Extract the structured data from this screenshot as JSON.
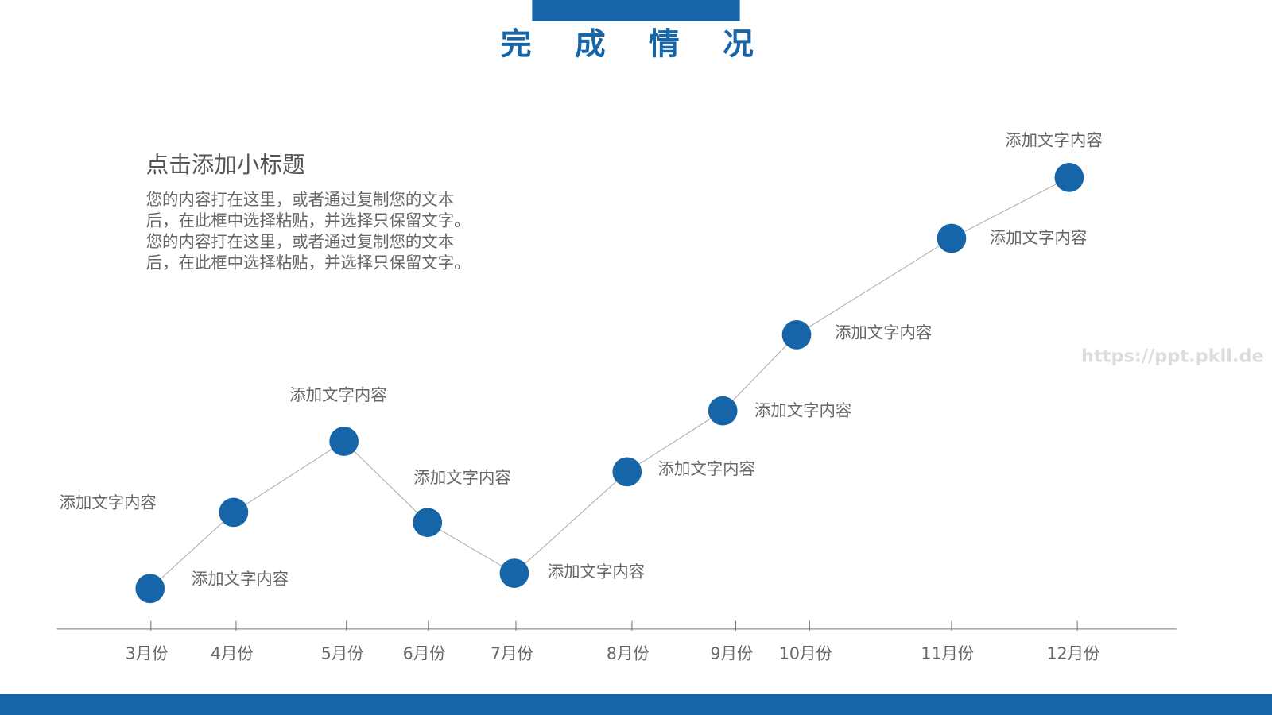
{
  "title": "完 成 情 况",
  "subtitle": "点击添加小标题",
  "body_lines": [
    "您的内容打在这里，或者通过复制您的文本",
    "后，在此框中选择粘贴，并选择只保留文字。",
    "您的内容打在这里，或者通过复制您的文本",
    "后，在此框中选择粘贴，并选择只保留文字。"
  ],
  "watermark": "https://ppt.pkll.de",
  "chart_data": {
    "type": "line",
    "categories": [
      "3月份",
      "4月份",
      "5月份",
      "6月份",
      "7月份",
      "8月份",
      "9月份",
      "10月份",
      "11月份",
      "12月份"
    ],
    "values": [
      8,
      23,
      37,
      21,
      11,
      31,
      43,
      58,
      77,
      89
    ],
    "point_labels": [
      "添加文字内容",
      "添加文字内容",
      "添加文字内容",
      "添加文字内容",
      "添加文字内容",
      "添加文字内容",
      "添加文字内容",
      "添加文字内容",
      "添加文字内容",
      "添加文字内容"
    ],
    "ylim": [
      0,
      100
    ],
    "color": "#1565a8"
  }
}
